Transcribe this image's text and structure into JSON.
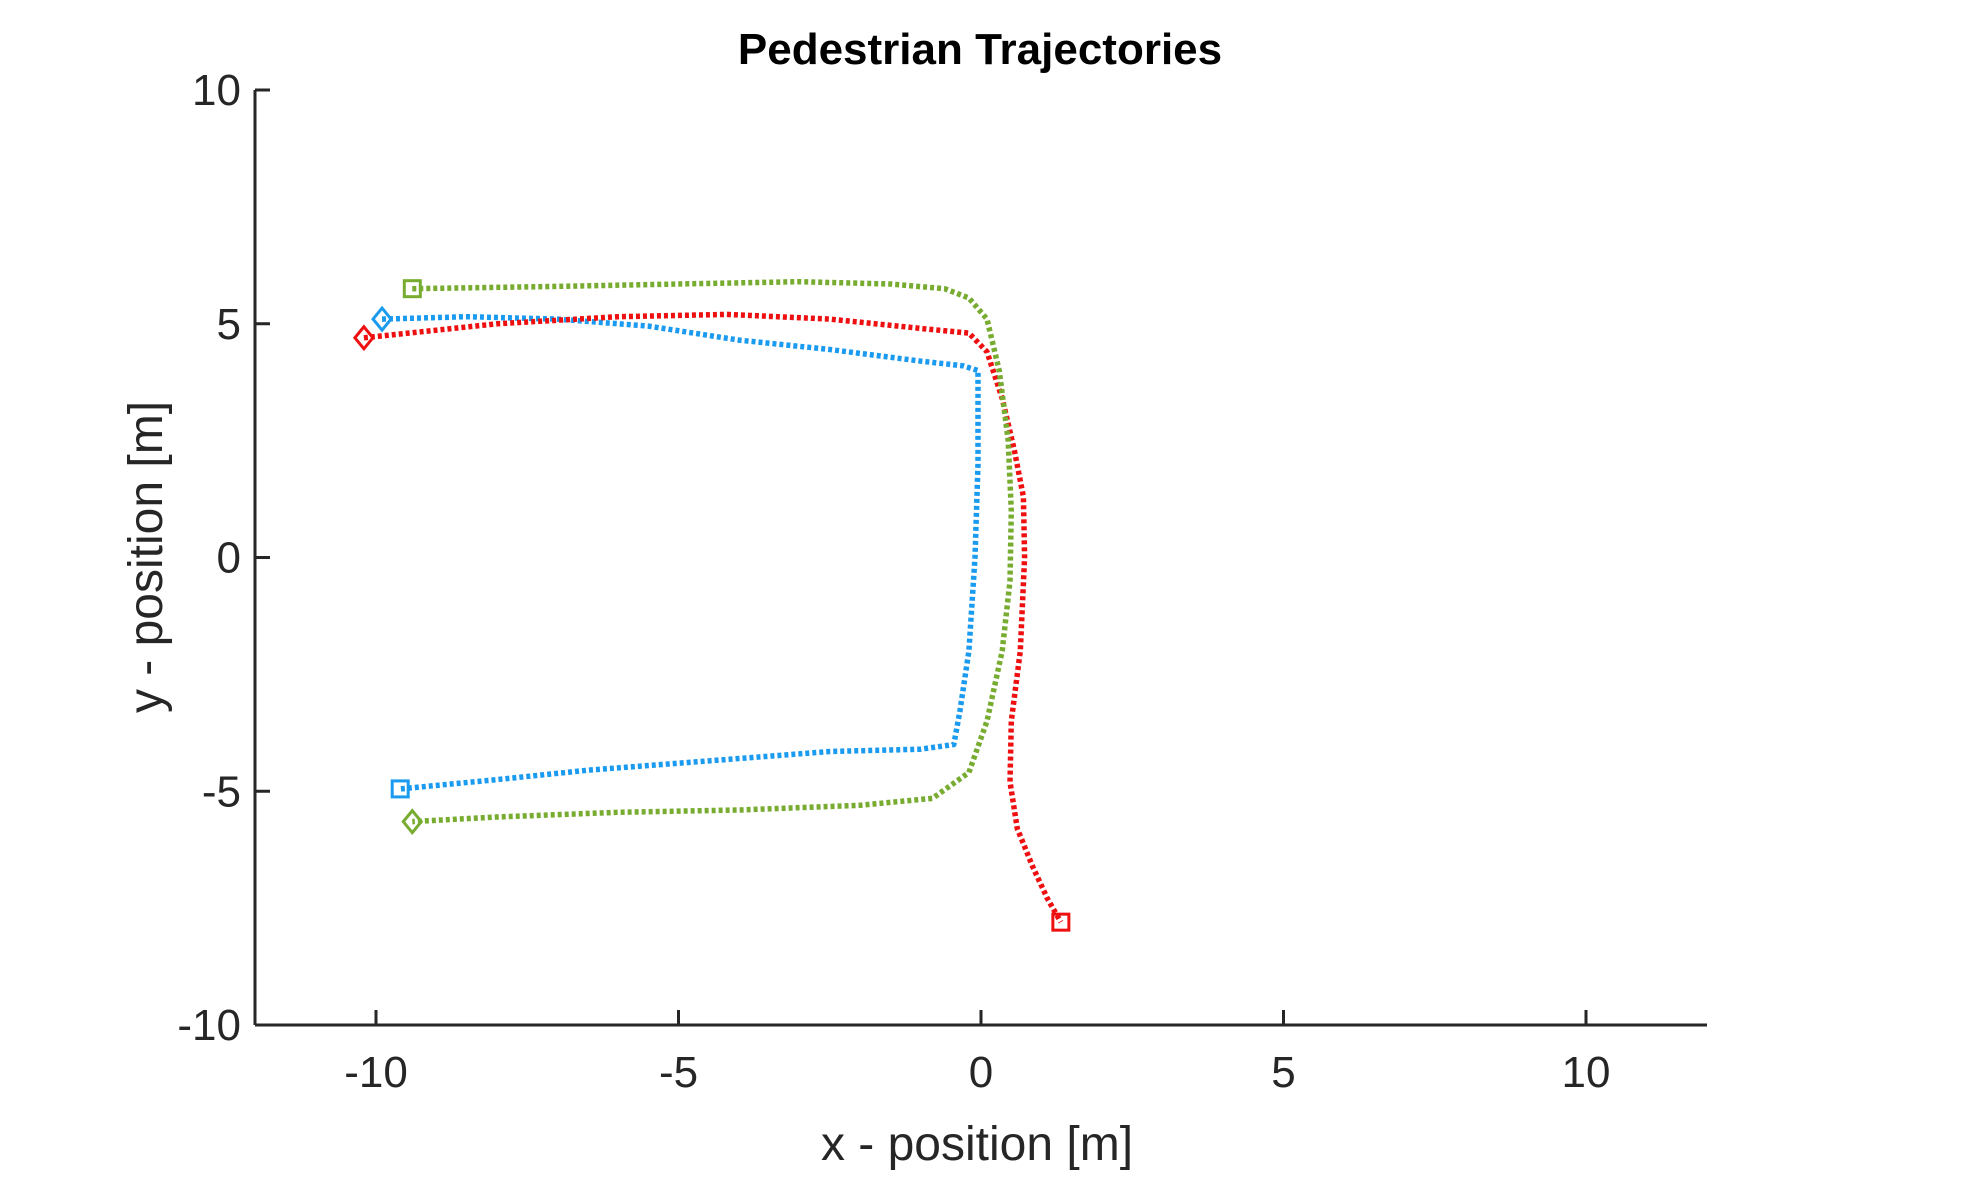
{
  "chart_data": {
    "type": "line",
    "title": "Pedestrian Trajectories",
    "xlabel": "x - position [m]",
    "ylabel": "y - position [m]",
    "xlim": [
      -12,
      12
    ],
    "ylim": [
      -10,
      10
    ],
    "xticks": [
      "-10",
      "-5",
      "0",
      "5",
      "10"
    ],
    "yticks": [
      "10",
      "5",
      "0",
      "-5",
      "-10"
    ],
    "grid": false,
    "colors": {
      "blue": "#1a9bf0",
      "red": "#ee1010",
      "green": "#77ac30",
      "axis": "#262626"
    },
    "series": [
      {
        "color": "#1a9bf0",
        "line": "dotted",
        "start_marker": "diamond",
        "end_marker": "square",
        "x": [
          -9.9,
          -8.5,
          -7,
          -5.5,
          -4,
          -2.5,
          -1,
          -0.3,
          -0.05,
          -0.05,
          -0.1,
          -0.2,
          -0.35,
          -0.45,
          -1,
          -2.5,
          -3.5,
          -5,
          -6.5,
          -8,
          -9.6
        ],
        "y": [
          5.1,
          5.15,
          5.1,
          4.95,
          4.65,
          4.45,
          4.2,
          4.1,
          4.0,
          2.0,
          0.0,
          -2.0,
          -3.3,
          -4.0,
          -4.1,
          -4.15,
          -4.25,
          -4.4,
          -4.55,
          -4.75,
          -4.95
        ]
      },
      {
        "color": "#ee1010",
        "line": "dotted",
        "start_marker": "diamond",
        "end_marker": "square",
        "x": [
          -10.2,
          -8,
          -6,
          -4.2,
          -2.5,
          -1,
          -0.2,
          0.1,
          0.35,
          0.55,
          0.7,
          0.72,
          0.65,
          0.5,
          0.48,
          0.6,
          0.85,
          1.1,
          1.32
        ],
        "y": [
          4.7,
          5.0,
          5.15,
          5.2,
          5.1,
          4.9,
          4.8,
          4.4,
          3.4,
          2.3,
          1.3,
          0.0,
          -2.0,
          -3.5,
          -4.8,
          -5.8,
          -6.6,
          -7.3,
          -7.8
        ]
      },
      {
        "color": "#77ac30",
        "line": "dotted",
        "start_marker": "square",
        "end_marker": "diamond",
        "x": [
          -9.4,
          -7,
          -5,
          -3,
          -1.5,
          -0.6,
          -0.2,
          0.1,
          0.3,
          0.45,
          0.5,
          0.48,
          0.35,
          0.1,
          -0.2,
          -0.8,
          -2,
          -4,
          -6,
          -8,
          -9.4
        ],
        "y": [
          5.75,
          5.8,
          5.85,
          5.9,
          5.85,
          5.75,
          5.55,
          5.1,
          4.0,
          2.5,
          1.0,
          -0.5,
          -2.0,
          -3.5,
          -4.6,
          -5.15,
          -5.3,
          -5.4,
          -5.45,
          -5.55,
          -5.65
        ]
      }
    ]
  }
}
